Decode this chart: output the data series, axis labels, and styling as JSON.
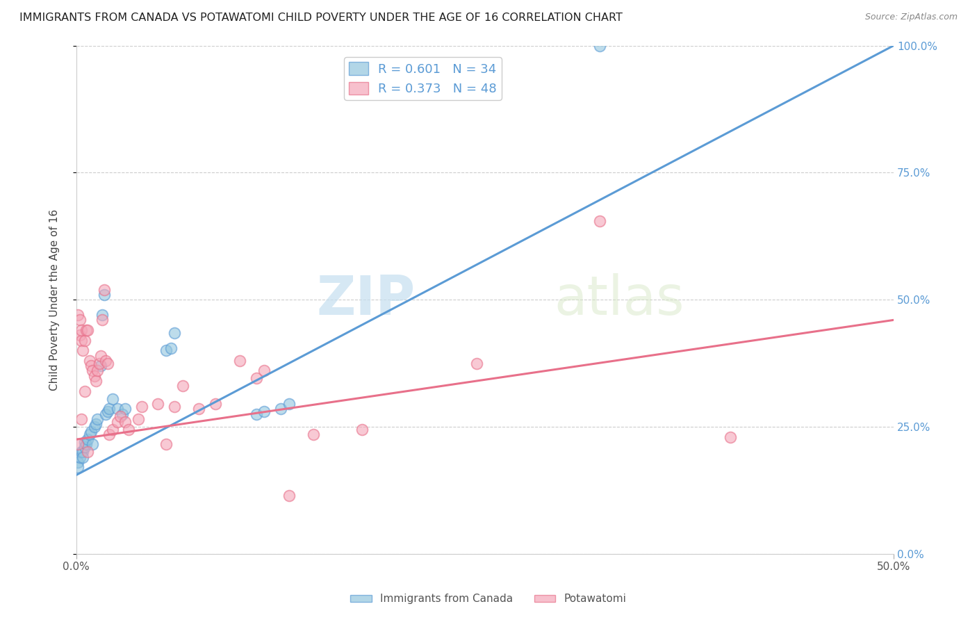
{
  "title": "IMMIGRANTS FROM CANADA VS POTAWATOMI CHILD POVERTY UNDER THE AGE OF 16 CORRELATION CHART",
  "source": "Source: ZipAtlas.com",
  "xlabel_blue": "Immigrants from Canada",
  "xlabel_pink": "Potawatomi",
  "ylabel": "Child Poverty Under the Age of 16",
  "xlim": [
    0.0,
    0.5
  ],
  "ylim": [
    0.0,
    1.0
  ],
  "ytick_labels": [
    "0.0%",
    "25.0%",
    "50.0%",
    "75.0%",
    "100.0%"
  ],
  "ytick_values": [
    0.0,
    0.25,
    0.5,
    0.75,
    1.0
  ],
  "xtick_labels": [
    "0.0%",
    "50.0%"
  ],
  "xtick_values": [
    0.0,
    0.5
  ],
  "legend_blue_R": "R = 0.601",
  "legend_blue_N": "N = 34",
  "legend_pink_R": "R = 0.373",
  "legend_pink_N": "N = 48",
  "blue_color": "#92c5de",
  "pink_color": "#f4a6b8",
  "line_blue_color": "#5b9bd5",
  "line_pink_color": "#e8708a",
  "watermark_zip": "ZIP",
  "watermark_atlas": "atlas",
  "blue_line_x": [
    0.0,
    0.5
  ],
  "blue_line_y": [
    0.155,
    1.0
  ],
  "pink_line_x": [
    0.0,
    0.5
  ],
  "pink_line_y": [
    0.225,
    0.46
  ],
  "blue_points_x": [
    0.001,
    0.001,
    0.002,
    0.003,
    0.004,
    0.004,
    0.005,
    0.005,
    0.006,
    0.007,
    0.008,
    0.009,
    0.01,
    0.011,
    0.012,
    0.013,
    0.015,
    0.016,
    0.017,
    0.018,
    0.019,
    0.02,
    0.022,
    0.025,
    0.028,
    0.03,
    0.055,
    0.058,
    0.06,
    0.11,
    0.115,
    0.125,
    0.13,
    0.32
  ],
  "blue_points_y": [
    0.18,
    0.17,
    0.19,
    0.2,
    0.2,
    0.19,
    0.22,
    0.21,
    0.215,
    0.225,
    0.235,
    0.24,
    0.215,
    0.25,
    0.255,
    0.265,
    0.37,
    0.47,
    0.51,
    0.275,
    0.28,
    0.285,
    0.305,
    0.285,
    0.275,
    0.285,
    0.4,
    0.405,
    0.435,
    0.275,
    0.28,
    0.285,
    0.295,
    1.0
  ],
  "pink_points_x": [
    0.001,
    0.002,
    0.002,
    0.003,
    0.003,
    0.004,
    0.005,
    0.006,
    0.007,
    0.008,
    0.009,
    0.01,
    0.011,
    0.012,
    0.013,
    0.014,
    0.015,
    0.016,
    0.017,
    0.018,
    0.019,
    0.02,
    0.022,
    0.025,
    0.027,
    0.03,
    0.032,
    0.038,
    0.04,
    0.05,
    0.055,
    0.06,
    0.065,
    0.075,
    0.085,
    0.1,
    0.11,
    0.115,
    0.13,
    0.145,
    0.175,
    0.245,
    0.32,
    0.4,
    0.001,
    0.003,
    0.005,
    0.007
  ],
  "pink_points_y": [
    0.47,
    0.43,
    0.46,
    0.42,
    0.44,
    0.4,
    0.42,
    0.44,
    0.44,
    0.38,
    0.37,
    0.36,
    0.35,
    0.34,
    0.36,
    0.375,
    0.39,
    0.46,
    0.52,
    0.38,
    0.375,
    0.235,
    0.245,
    0.26,
    0.27,
    0.26,
    0.245,
    0.265,
    0.29,
    0.295,
    0.215,
    0.29,
    0.33,
    0.285,
    0.295,
    0.38,
    0.345,
    0.36,
    0.115,
    0.235,
    0.245,
    0.375,
    0.655,
    0.23,
    0.215,
    0.265,
    0.32,
    0.2
  ]
}
